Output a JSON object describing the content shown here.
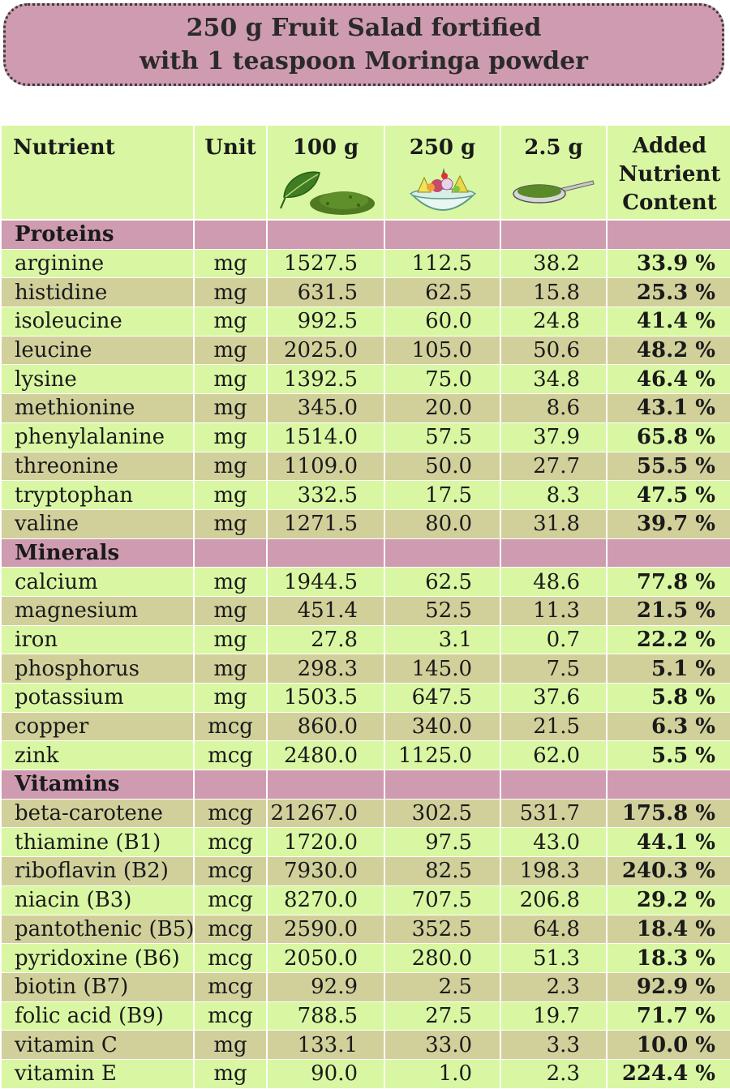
{
  "title": {
    "line1": "250 g Fruit Salad fortified",
    "line2": "with 1 teaspoon Moringa powder"
  },
  "colors": {
    "header_bg": "#cf9bb0",
    "row_green": "#d9f7a2",
    "row_khaki": "#d1d09b",
    "section_bg": "#cf9bb0"
  },
  "table": {
    "headers": {
      "nutrient": "Nutrient",
      "unit": "Unit",
      "col_100g": "100 g",
      "col_250g": "250 g",
      "col_2_5g": "2.5 g",
      "added_line1": "Added",
      "added_line2": "Nutrient",
      "added_line3": "Content"
    },
    "header_icons": {
      "col_100g": "moringa-leaf-and-powder-icon",
      "col_250g": "fruit-salad-bowl-icon",
      "col_2_5g": "teaspoon-powder-icon"
    },
    "sections": [
      {
        "name": "Proteins",
        "rows": [
          {
            "nutrient": "arginine",
            "unit": "mg",
            "v100": "1527.5",
            "v250": "112.5",
            "v2_5": "38.2",
            "added": "33.9 %"
          },
          {
            "nutrient": "histidine",
            "unit": "mg",
            "v100": "631.5",
            "v250": "62.5",
            "v2_5": "15.8",
            "added": "25.3 %"
          },
          {
            "nutrient": "isoleucine",
            "unit": "mg",
            "v100": "992.5",
            "v250": "60.0",
            "v2_5": "24.8",
            "added": "41.4 %"
          },
          {
            "nutrient": "leucine",
            "unit": "mg",
            "v100": "2025.0",
            "v250": "105.0",
            "v2_5": "50.6",
            "added": "48.2 %"
          },
          {
            "nutrient": "lysine",
            "unit": "mg",
            "v100": "1392.5",
            "v250": "75.0",
            "v2_5": "34.8",
            "added": "46.4 %"
          },
          {
            "nutrient": "methionine",
            "unit": "mg",
            "v100": "345.0",
            "v250": "20.0",
            "v2_5": "8.6",
            "added": "43.1 %"
          },
          {
            "nutrient": "phenylalanine",
            "unit": "mg",
            "v100": "1514.0",
            "v250": "57.5",
            "v2_5": "37.9",
            "added": "65.8 %"
          },
          {
            "nutrient": "threonine",
            "unit": "mg",
            "v100": "1109.0",
            "v250": "50.0",
            "v2_5": "27.7",
            "added": "55.5 %"
          },
          {
            "nutrient": "tryptophan",
            "unit": "mg",
            "v100": "332.5",
            "v250": "17.5",
            "v2_5": "8.3",
            "added": "47.5 %"
          },
          {
            "nutrient": "valine",
            "unit": "mg",
            "v100": "1271.5",
            "v250": "80.0",
            "v2_5": "31.8",
            "added": "39.7 %"
          }
        ]
      },
      {
        "name": "Minerals",
        "rows": [
          {
            "nutrient": "calcium",
            "unit": "mg",
            "v100": "1944.5",
            "v250": "62.5",
            "v2_5": "48.6",
            "added": "77.8 %"
          },
          {
            "nutrient": "magnesium",
            "unit": "mg",
            "v100": "451.4",
            "v250": "52.5",
            "v2_5": "11.3",
            "added": "21.5 %"
          },
          {
            "nutrient": "iron",
            "unit": "mg",
            "v100": "27.8",
            "v250": "3.1",
            "v2_5": "0.7",
            "added": "22.2 %"
          },
          {
            "nutrient": "phosphorus",
            "unit": "mg",
            "v100": "298.3",
            "v250": "145.0",
            "v2_5": "7.5",
            "added": "5.1 %"
          },
          {
            "nutrient": "potassium",
            "unit": "mg",
            "v100": "1503.5",
            "v250": "647.5",
            "v2_5": "37.6",
            "added": "5.8 %"
          },
          {
            "nutrient": "copper",
            "unit": "mcg",
            "v100": "860.0",
            "v250": "340.0",
            "v2_5": "21.5",
            "added": "6.3 %"
          },
          {
            "nutrient": "zink",
            "unit": "mcg",
            "v100": "2480.0",
            "v250": "1125.0",
            "v2_5": "62.0",
            "added": "5.5 %"
          }
        ]
      },
      {
        "name": "Vitamins",
        "rows": [
          {
            "nutrient": "beta-carotene",
            "unit": "mcg",
            "v100": "21267.0",
            "v250": "302.5",
            "v2_5": "531.7",
            "added": "175.8 %"
          },
          {
            "nutrient": "thiamine (B1)",
            "unit": "mcg",
            "v100": "1720.0",
            "v250": "97.5",
            "v2_5": "43.0",
            "added": "44.1 %"
          },
          {
            "nutrient": "riboflavin (B2)",
            "unit": "mcg",
            "v100": "7930.0",
            "v250": "82.5",
            "v2_5": "198.3",
            "added": "240.3 %"
          },
          {
            "nutrient": "niacin (B3)",
            "unit": "mcg",
            "v100": "8270.0",
            "v250": "707.5",
            "v2_5": "206.8",
            "added": "29.2 %"
          },
          {
            "nutrient": "pantothenic (B5)",
            "unit": "mcg",
            "v100": "2590.0",
            "v250": "352.5",
            "v2_5": "64.8",
            "added": "18.4 %"
          },
          {
            "nutrient": "pyridoxine (B6)",
            "unit": "mcg",
            "v100": "2050.0",
            "v250": "280.0",
            "v2_5": "51.3",
            "added": "18.3 %"
          },
          {
            "nutrient": "biotin (B7)",
            "unit": "mcg",
            "v100": "92.9",
            "v250": "2.5",
            "v2_5": "2.3",
            "added": "92.9 %"
          },
          {
            "nutrient": "folic acid (B9)",
            "unit": "mcg",
            "v100": "788.5",
            "v250": "27.5",
            "v2_5": "19.7",
            "added": "71.7 %"
          },
          {
            "nutrient": "vitamin C",
            "unit": "mg",
            "v100": "133.1",
            "v250": "33.0",
            "v2_5": "3.3",
            "added": "10.0 %"
          },
          {
            "nutrient": "vitamin E",
            "unit": "mg",
            "v100": "90.0",
            "v250": "1.0",
            "v2_5": "2.3",
            "added": "224.4 %"
          }
        ]
      }
    ]
  }
}
